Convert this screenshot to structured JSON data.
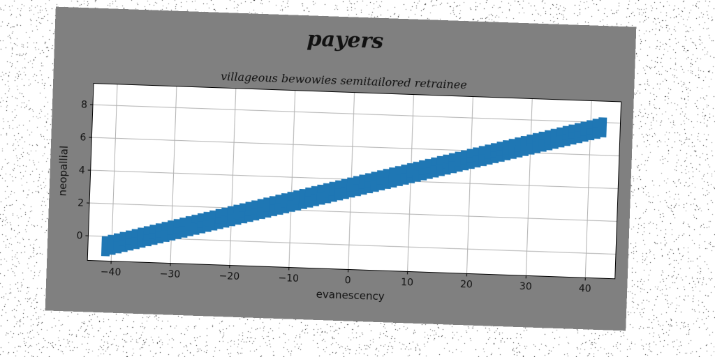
{
  "figure": {
    "suptitle": "payers",
    "background_color": "#808080",
    "page_noise": "salt-and-pepper speckle"
  },
  "chart_data": {
    "type": "scatter",
    "title": "villageous bewowies semitailored retrainee",
    "xlabel": "evanescency",
    "ylabel": "neopallial",
    "xlim": [
      -44,
      45
    ],
    "ylim": [
      -1.5,
      9.3
    ],
    "xticks": [
      -40,
      -30,
      -20,
      -10,
      0,
      10,
      20,
      30,
      40
    ],
    "yticks": [
      0,
      2,
      4,
      6,
      8
    ],
    "grid": true,
    "marker": "square",
    "series": [
      {
        "color": "#1f77b4",
        "x_range": [
          -41,
          42
        ],
        "relation": "y = 0.1 * x + 3.5",
        "band_halfwidth": 0.35
      }
    ]
  }
}
